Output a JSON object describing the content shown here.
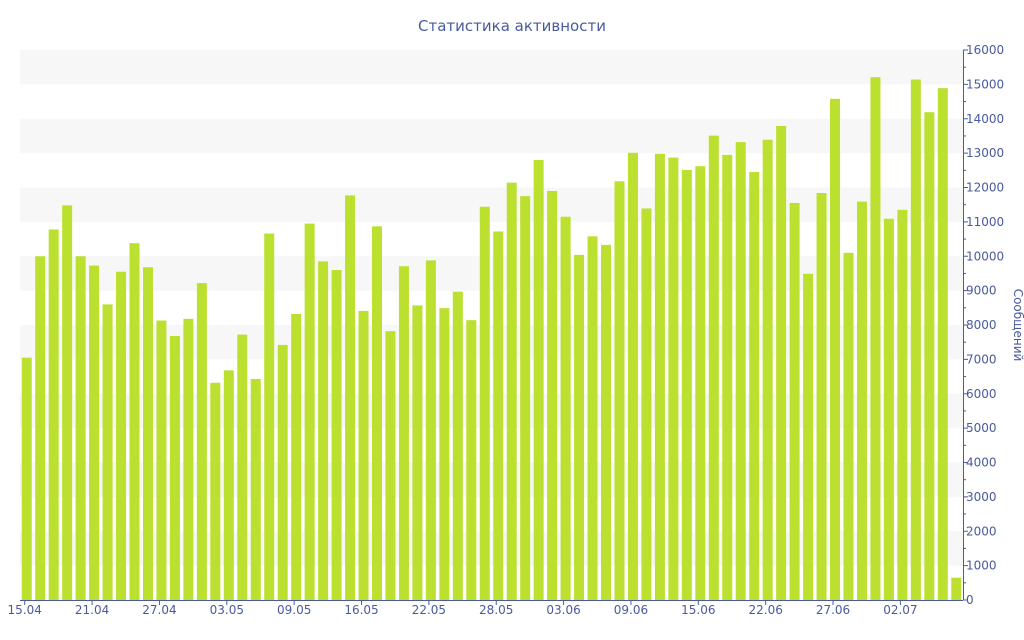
{
  "chart_data": {
    "type": "bar",
    "title": "Статистика активности",
    "xlabel": "",
    "ylabel": "Сообщений",
    "ylim": [
      0,
      16000
    ],
    "y_ticks": [
      0,
      1000,
      2000,
      3000,
      4000,
      5000,
      6000,
      7000,
      8000,
      9000,
      10000,
      11000,
      12000,
      13000,
      14000,
      15000,
      16000
    ],
    "y_axis_position": "right",
    "grid": "alternating horizontal bands",
    "bar_color": "#bbe02f",
    "text_color": "#4a5a9e",
    "x_tick_labels": [
      {
        "index": 0,
        "label": "15.04"
      },
      {
        "index": 5,
        "label": "21.04"
      },
      {
        "index": 10,
        "label": "27.04"
      },
      {
        "index": 15,
        "label": "03.05"
      },
      {
        "index": 20,
        "label": "09.05"
      },
      {
        "index": 25,
        "label": "16.05"
      },
      {
        "index": 30,
        "label": "22.05"
      },
      {
        "index": 35,
        "label": "28.05"
      },
      {
        "index": 40,
        "label": "03.06"
      },
      {
        "index": 45,
        "label": "09.06"
      },
      {
        "index": 50,
        "label": "15.06"
      },
      {
        "index": 55,
        "label": "22.06"
      },
      {
        "index": 60,
        "label": "27.06"
      },
      {
        "index": 65,
        "label": "02.07"
      }
    ],
    "values": [
      7050,
      10000,
      10780,
      11480,
      10000,
      9730,
      8600,
      9550,
      10380,
      9680,
      8130,
      7680,
      8180,
      9220,
      6320,
      6680,
      7720,
      6430,
      10660,
      7420,
      8320,
      10950,
      9850,
      9600,
      11770,
      8410,
      10870,
      7820,
      9710,
      8570,
      9880,
      8490,
      8970,
      8140,
      11440,
      10720,
      12140,
      11750,
      12800,
      11900,
      11150,
      10040,
      10580,
      10330,
      12180,
      13010,
      11390,
      12980,
      12870,
      12510,
      12620,
      13510,
      12950,
      13320,
      12450,
      13390,
      13790,
      11550,
      9490,
      11840,
      14580,
      10100,
      11590,
      15210,
      11090,
      11350,
      15140,
      14190,
      14890,
      650
    ]
  }
}
